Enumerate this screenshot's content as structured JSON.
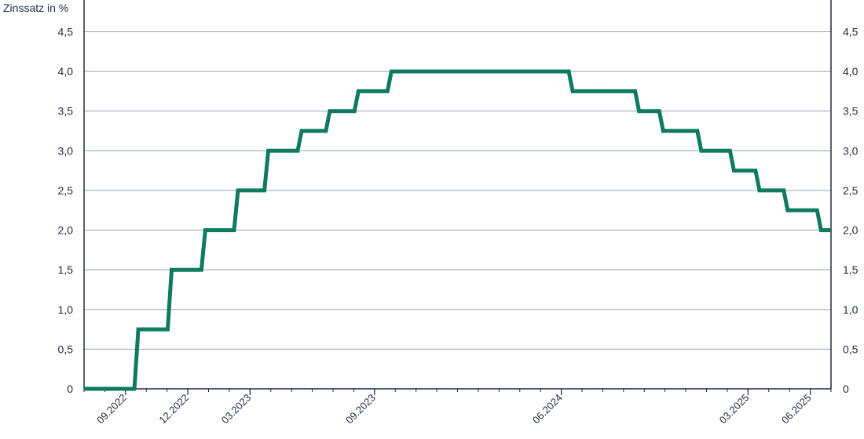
{
  "chart_data": {
    "type": "line",
    "title": "",
    "ylabel": "Zinssatz in %",
    "xlabel": "",
    "ylim": [
      0,
      4.9
    ],
    "y_ticks": [
      "0",
      "0,5",
      "1,0",
      "1,5",
      "2,0",
      "2,5",
      "3,0",
      "3,5",
      "4,0",
      "4,5"
    ],
    "y_tick_values": [
      0,
      0.5,
      1.0,
      1.5,
      2.0,
      2.5,
      3.0,
      3.5,
      4.0,
      4.5
    ],
    "x_range": [
      "2022-07",
      "2025-07"
    ],
    "x_ticks": [
      "09.2022",
      "12.2022",
      "03.2023",
      "09.2023",
      "06.2024",
      "03.2025",
      "06.2025"
    ],
    "x_tick_dates": [
      "2022-09",
      "2022-12",
      "2023-03",
      "2023-09",
      "2024-06",
      "2025-03",
      "2025-06"
    ],
    "grid": "horizontal",
    "legend": "none",
    "colors": {
      "line": "#0e7a5f",
      "grid": "#9aa4ad",
      "axis": "#1f2a44"
    },
    "series": [
      {
        "x": [
          "2022-07-01",
          "2022-09-14",
          "2022-11-02",
          "2022-12-21",
          "2023-02-08",
          "2023-03-22",
          "2023-05-10",
          "2023-06-21",
          "2023-08-02",
          "2023-09-20",
          "2024-06-12",
          "2024-09-18",
          "2024-10-23",
          "2024-12-18",
          "2025-02-05",
          "2025-03-12",
          "2025-04-23",
          "2025-06-11",
          "2025-07-01"
        ],
        "y": [
          0,
          0.75,
          1.5,
          2.0,
          2.5,
          3.0,
          3.25,
          3.5,
          3.75,
          4.0,
          3.75,
          3.5,
          3.25,
          3.0,
          2.75,
          2.5,
          2.25,
          2.0,
          2.0
        ]
      }
    ]
  }
}
